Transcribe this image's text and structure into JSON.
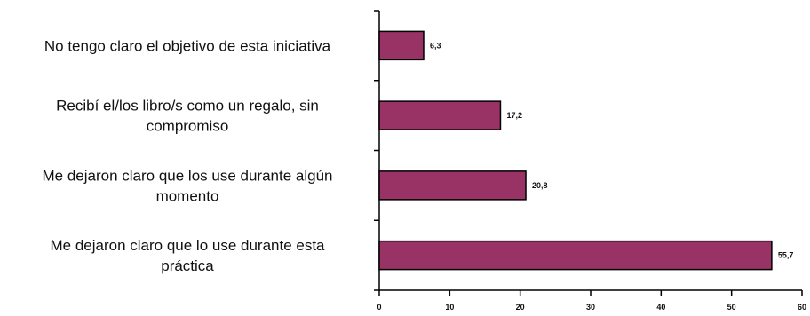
{
  "chart_data": {
    "type": "bar",
    "orientation": "horizontal",
    "categories": [
      [
        "No tengo claro el objetivo de esta iniciativa"
      ],
      [
        "Recibí el/los libro/s como un regalo, sin",
        "compromiso"
      ],
      [
        "Me dejaron claro que los use durante algún",
        "momento"
      ],
      [
        "Me dejaron claro que lo use durante esta",
        "práctica"
      ]
    ],
    "values": [
      6.3,
      17.2,
      20.8,
      55.7
    ],
    "data_labels": [
      "6,3",
      "17,2",
      "20,8",
      "55,7"
    ],
    "xlim": [
      0,
      60
    ],
    "xticks": [
      0,
      10,
      20,
      30,
      40,
      50,
      60
    ],
    "xtick_labels": [
      "0",
      "10",
      "20",
      "30",
      "40",
      "50",
      "60"
    ],
    "grid": false,
    "legend": null,
    "colors": {
      "bar_fill": "#993366",
      "bar_stroke": "#000000",
      "axis": "#000000"
    }
  }
}
